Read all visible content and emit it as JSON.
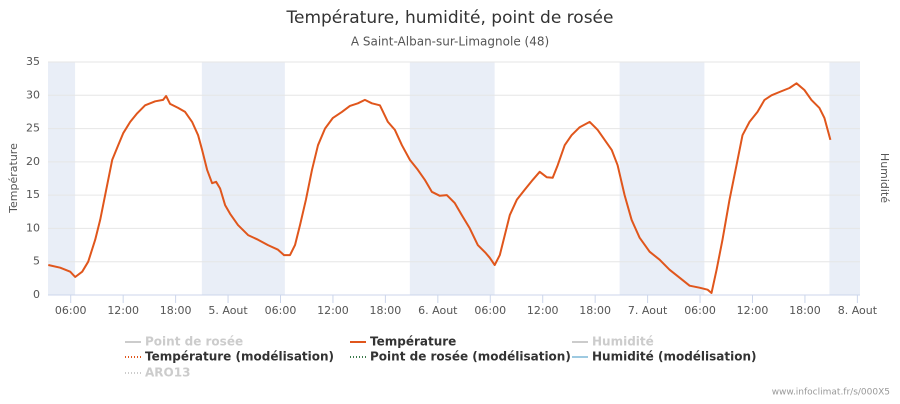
{
  "chart_data": {
    "type": "line",
    "title": "Température, humidité, point de rosée",
    "subtitle": "A Saint-Alban-sur-Limagnole (48)",
    "y_label": "Température",
    "y2_label": "Humidité",
    "credit": "www.infoclimat.fr/s/000X5",
    "xlim": [
      3.4,
      96.3
    ],
    "ylim": [
      0,
      35
    ],
    "yticks": [
      0,
      5,
      10,
      15,
      20,
      25,
      30,
      35
    ],
    "grid": true,
    "xticks": [
      {
        "value": 6,
        "label": "06:00"
      },
      {
        "value": 12,
        "label": "12:00"
      },
      {
        "value": 18,
        "label": "18:00"
      },
      {
        "value": 24,
        "label": "5. Aout"
      },
      {
        "value": 30,
        "label": "06:00"
      },
      {
        "value": 36,
        "label": "12:00"
      },
      {
        "value": 42,
        "label": "18:00"
      },
      {
        "value": 48,
        "label": "6. Aout"
      },
      {
        "value": 54,
        "label": "06:00"
      },
      {
        "value": 60,
        "label": "12:00"
      },
      {
        "value": 66,
        "label": "18:00"
      },
      {
        "value": 72,
        "label": "7. Aout"
      },
      {
        "value": 78,
        "label": "06:00"
      },
      {
        "value": 84,
        "label": "12:00"
      },
      {
        "value": 90,
        "label": "18:00"
      },
      {
        "value": 96,
        "label": "8. Aout"
      }
    ],
    "plot_bands": [
      [
        3.4,
        6.5
      ],
      [
        21,
        30.5
      ],
      [
        44.8,
        54.5
      ],
      [
        68.8,
        78.5
      ],
      [
        92.8,
        96.3
      ]
    ],
    "band_color": "#e9eef7",
    "series": [
      {
        "name": "Point de rosée",
        "color": "#cccccc",
        "hidden": true
      },
      {
        "name": "Température",
        "color": "#e0561c",
        "x": [
          3.43,
          4.8,
          5.94,
          6.51,
          7.31,
          8.0,
          8.8,
          9.37,
          10.06,
          10.74,
          11.43,
          12.0,
          12.8,
          13.6,
          14.51,
          15.66,
          16.57,
          16.91,
          17.37,
          18.29,
          19.09,
          19.89,
          20.57,
          21.03,
          21.6,
          22.17,
          22.63,
          23.09,
          23.66,
          24.23,
          25.14,
          26.29,
          27.43,
          28.57,
          29.71,
          30.4,
          31.09,
          31.66,
          32.23,
          32.91,
          33.6,
          34.29,
          35.09,
          36.0,
          37.03,
          37.94,
          38.86,
          39.66,
          40.46,
          41.37,
          42.29,
          43.09,
          43.89,
          44.8,
          45.71,
          46.51,
          47.31,
          48.23,
          49.03,
          49.94,
          50.74,
          51.66,
          52.57,
          53.49,
          53.94,
          54.51,
          55.09,
          55.66,
          56.23,
          57.03,
          57.94,
          58.86,
          59.66,
          60.46,
          61.14,
          61.71,
          62.51,
          63.31,
          64.23,
          65.37,
          66.29,
          67.09,
          67.89,
          68.57,
          69.37,
          70.17,
          71.09,
          72.23,
          73.37,
          74.51,
          75.66,
          76.8,
          77.94,
          78.86,
          79.31,
          79.89,
          80.57,
          81.37,
          82.17,
          82.86,
          83.66,
          84.57,
          85.37,
          86.17,
          87.09,
          88.23,
          89.03,
          89.94,
          90.74,
          91.66,
          92.23,
          92.91
        ],
        "values": [
          4.5,
          4.1,
          3.5,
          2.7,
          3.5,
          5,
          8.3,
          11.3,
          15.8,
          20.3,
          22.5,
          24.3,
          26,
          27.3,
          28.5,
          29.1,
          29.3,
          29.9,
          28.7,
          28.1,
          27.5,
          26,
          24,
          21.8,
          18.8,
          16.8,
          17,
          16,
          13.5,
          12.2,
          10.5,
          9,
          8.3,
          7.5,
          6.8,
          6,
          6,
          7.5,
          10.5,
          14.3,
          18.8,
          22.5,
          25,
          26.6,
          27.5,
          28.4,
          28.8,
          29.3,
          28.8,
          28.5,
          26,
          24.8,
          22.5,
          20.3,
          18.8,
          17.3,
          15.5,
          14.9,
          15,
          13.8,
          12,
          10,
          7.5,
          6.3,
          5.6,
          4.5,
          6,
          9,
          12,
          14.3,
          15.8,
          17.3,
          18.5,
          17.7,
          17.6,
          19.5,
          22.5,
          24,
          25.2,
          26,
          24.8,
          23.3,
          21.8,
          19.5,
          15,
          11.3,
          8.6,
          6.5,
          5.3,
          3.8,
          2.6,
          1.4,
          1.1,
          0.8,
          0.3,
          3.8,
          8.3,
          14.3,
          19.5,
          24,
          26,
          27.5,
          29.3,
          30,
          30.5,
          31.1,
          31.8,
          30.8,
          29.3,
          28.1,
          26.6,
          23.3
        ]
      },
      {
        "name": "Humidité",
        "color": "#cccccc",
        "hidden": true
      },
      {
        "name": "Température (modélisation)",
        "color": "#e0561c",
        "dashed": true
      },
      {
        "name": "Point de rosée (modélisation)",
        "color": "#3a7a4a",
        "dashed": true
      },
      {
        "name": "Humidité (modélisation)",
        "color": "#9ecae1"
      },
      {
        "name": "ARO13",
        "color": "#cccccc",
        "dashed": true,
        "hidden": true
      }
    ]
  }
}
